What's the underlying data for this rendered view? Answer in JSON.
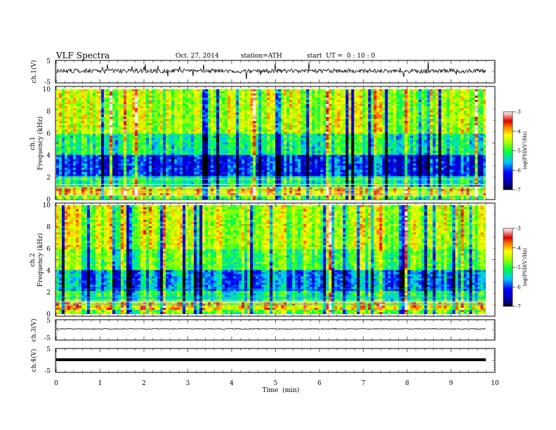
{
  "header": {
    "title": "VLF Spectra",
    "date": "Oct. 27, 2014",
    "station": "station=ATH",
    "start": "start  UT =  0 : 10 : 0"
  },
  "colors": {
    "spectrum_low": "#000080",
    "spectrum_mid": "#00ff00",
    "spectrum_high": "#ff0000",
    "spectrum_top": "#ffffff"
  },
  "chart_data": [
    {
      "type": "line",
      "name": "waveform-ch1",
      "ylabel": "ch.1(V)",
      "ylim": [
        -5,
        5
      ],
      "yticks": [
        "5",
        "-5"
      ],
      "xlim": [
        0,
        10
      ]
    },
    {
      "type": "heatmap",
      "name": "spectrogram-ch1",
      "ylabel_channel": "ch.1",
      "ylabel": "Frequency  (kHz)",
      "ylim": [
        0,
        10
      ],
      "yticks": [
        "0",
        "2",
        "4",
        "6",
        "8",
        "10"
      ],
      "xlim": [
        0,
        9.8
      ],
      "colorbar": {
        "label": "log(PSD(V²/Hz)",
        "range": [
          -7,
          -3
        ],
        "ticks": [
          "-3",
          "-4",
          "-5",
          "-6",
          "-7"
        ]
      }
    },
    {
      "type": "heatmap",
      "name": "spectrogram-ch2",
      "ylabel_channel": "ch.2",
      "ylabel": "Frequency  (kHz)",
      "ylim": [
        0,
        10
      ],
      "yticks": [
        "0",
        "2",
        "4",
        "6",
        "8",
        "10"
      ],
      "xlim": [
        0,
        9.8
      ],
      "colorbar": {
        "label": "log(PSD(V²/Hz)",
        "range": [
          -7,
          -3
        ],
        "ticks": [
          "-3",
          "-4",
          "-5",
          "-6",
          "-7"
        ]
      }
    },
    {
      "type": "line",
      "name": "waveform-ch3",
      "ylabel": "ch.3(V)",
      "ylim": [
        -5,
        5
      ],
      "yticks": [
        "5",
        "-5"
      ],
      "xlim": [
        0,
        10
      ]
    },
    {
      "type": "line",
      "name": "waveform-ch4",
      "ylabel": "ch.4(V)",
      "ylim": [
        -5,
        5
      ],
      "yticks": [
        "5",
        "-5"
      ],
      "xlim": [
        0,
        10
      ]
    }
  ],
  "xaxis": {
    "label": "Time  (min)",
    "ticks": [
      "0",
      "1",
      "2",
      "3",
      "4",
      "5",
      "6",
      "7",
      "8",
      "9",
      "10"
    ]
  }
}
